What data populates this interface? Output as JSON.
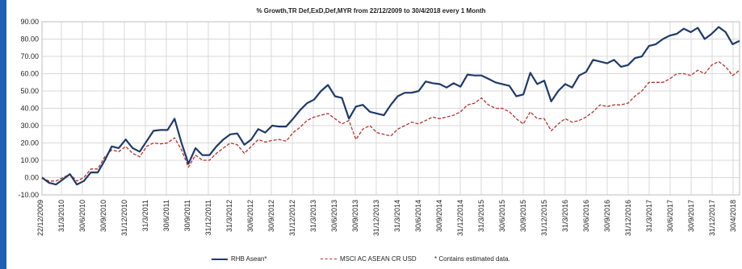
{
  "chart_data": {
    "type": "line",
    "title": "% Growth,TR Def,ExD,Def,MYR from 22/12/2009 to 30/4/2018 every 1 Month",
    "xlabel": "",
    "ylabel": "",
    "ylim": [
      -10,
      90
    ],
    "yticks": [
      "90.00",
      "80.00",
      "70.00",
      "60.00",
      "50.00",
      "40.00",
      "30.00",
      "20.00",
      "10.00",
      "0.00",
      "-10.00"
    ],
    "xticks": [
      "22/12/2009",
      "31/3/2010",
      "30/6/2010",
      "30/9/2010",
      "31/12/2010",
      "31/3/2011",
      "30/6/2011",
      "30/9/2011",
      "31/12/2011",
      "31/3/2012",
      "30/6/2012",
      "30/9/2012",
      "31/12/2012",
      "31/3/2013",
      "30/6/2013",
      "30/9/2013",
      "31/12/2013",
      "31/3/2014",
      "30/6/2014",
      "30/9/2014",
      "31/12/2014",
      "31/3/2015",
      "30/6/2015",
      "30/9/2015",
      "31/12/2015",
      "31/3/2016",
      "30/6/2016",
      "30/9/2016",
      "31/12/2016",
      "31/3/2017",
      "30/6/2017",
      "30/9/2017",
      "31/12/2017",
      "30/4/2018"
    ],
    "grid": true,
    "legend_position": "bottom",
    "colors": {
      "series1": "#1f3a6b",
      "series2": "#b8322a",
      "grid": "#d9d9d9",
      "frame": "#1d5fb0"
    },
    "series": [
      {
        "name": "RHB Asean*",
        "style": "solid",
        "values": [
          0,
          -3,
          -4,
          -1,
          2,
          -4,
          -2,
          3,
          3,
          10,
          18,
          17,
          22,
          17,
          15,
          21,
          27,
          27.5,
          27.5,
          34,
          20,
          8,
          17,
          13,
          13,
          18,
          22,
          25,
          25.5,
          19,
          22,
          28,
          26,
          30,
          29.5,
          29.5,
          34,
          39,
          43,
          45,
          50,
          53.5,
          47,
          46,
          34,
          41,
          42,
          38,
          37,
          36,
          42,
          47,
          49,
          49,
          50,
          55.5,
          54.5,
          54,
          52,
          54.5,
          52.5,
          59.5,
          59,
          59,
          57,
          55,
          54,
          53,
          47,
          48,
          60.5,
          54,
          56,
          44,
          50,
          54,
          52,
          59,
          61,
          68,
          67,
          66,
          68,
          64,
          65,
          69,
          70,
          76,
          77,
          80,
          82,
          83,
          86,
          84,
          86.5,
          80,
          83,
          87,
          84,
          77,
          79
        ]
      },
      {
        "name": "MSCI AC ASEAN CR USD",
        "style": "dashed",
        "values": [
          0,
          -2,
          -2,
          0,
          2,
          -2,
          0,
          5,
          5,
          12,
          16,
          15,
          18,
          14,
          12,
          18,
          20,
          19.5,
          20,
          23,
          16,
          6,
          13,
          10,
          10,
          14,
          17,
          20,
          19,
          14,
          18,
          22,
          20.5,
          21.5,
          22,
          21,
          26,
          29,
          33,
          35,
          36,
          37,
          34,
          31,
          33,
          22,
          28,
          30,
          26,
          25,
          24,
          28,
          30,
          32,
          31,
          33,
          35,
          34,
          35,
          36,
          38,
          42,
          43,
          46,
          42,
          40,
          40,
          38,
          34,
          31,
          38,
          34,
          34,
          27,
          31,
          34,
          32,
          33,
          35,
          38,
          42,
          41,
          42,
          42,
          43,
          47,
          50,
          55,
          55,
          55,
          57,
          60,
          60,
          59,
          62,
          60,
          65,
          67,
          64,
          59,
          62
        ]
      }
    ],
    "legend": {
      "series1_label": "RHB Asean*",
      "series2_label": "MSCI AC ASEAN CR USD",
      "note": "* Contains estimated data."
    }
  }
}
